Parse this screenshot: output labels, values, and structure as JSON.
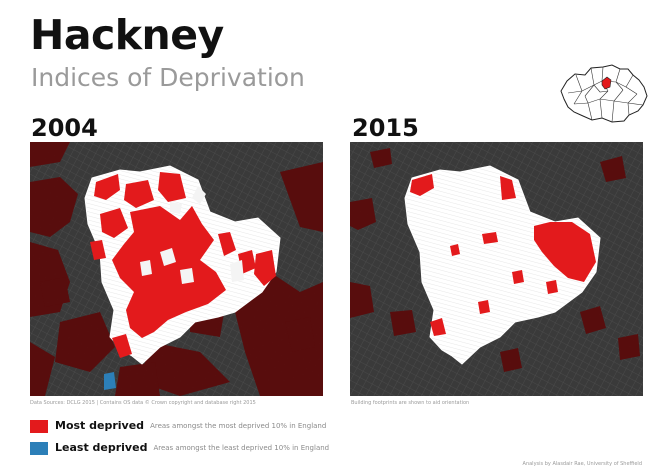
{
  "header": {
    "title": "Hackney",
    "subtitle": "Indices of Deprivation"
  },
  "maps": [
    {
      "year": "2004",
      "caption": "Data Sources: DCLG 2015 | Contains OS data © Crown copyright and database right 2015"
    },
    {
      "year": "2015",
      "caption": "Building footprints are shown to aid orientation"
    }
  ],
  "legend": [
    {
      "label": "Most deprived",
      "description": "Areas amongst the most deprived 10% in England",
      "color": "#e31a1c"
    },
    {
      "label": "Least deprived",
      "description": "Areas amongst the least deprived 10% in England",
      "color": "#2c7fb8"
    }
  ],
  "colors": {
    "background_map": "#3a3a3a",
    "borough_fill": "#f2f2f2",
    "outer_deprived": "#5a0b0b",
    "inset_highlight": "#e31a1c"
  },
  "credit": "Analysis by Alasdair Rae, University of Sheffield"
}
